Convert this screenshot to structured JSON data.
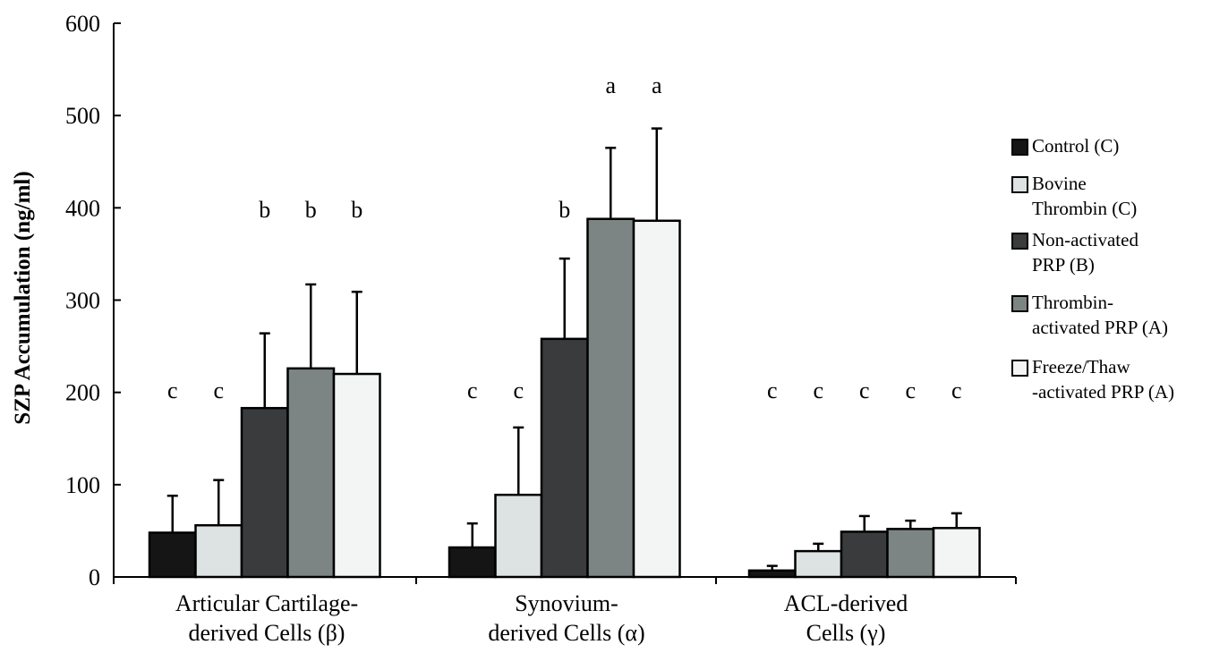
{
  "chart_data": {
    "type": "bar",
    "title": "",
    "xlabel": "",
    "ylabel": "SZP Accumulation (ng/ml)",
    "ylim": [
      0,
      600
    ],
    "yticks": [
      0,
      100,
      200,
      300,
      400,
      500,
      600
    ],
    "grid": false,
    "legend_position": "right",
    "categories": [
      [
        "Articular Cartilage-",
        "derived Cells (β)"
      ],
      [
        "Synovium-",
        "derived Cells (α)"
      ],
      [
        "ACL-derived",
        "Cells (γ)"
      ]
    ],
    "series": [
      {
        "name": [
          "Control (C)"
        ],
        "color": "#151515",
        "values": [
          48,
          32,
          7
        ],
        "errors": [
          40,
          26,
          5
        ],
        "sig": [
          "c",
          "c",
          "c"
        ]
      },
      {
        "name": [
          "Bovine",
          "Thrombin (C)"
        ],
        "color": "#dde2e2",
        "values": [
          56,
          89,
          28
        ],
        "errors": [
          49,
          73,
          8
        ],
        "sig": [
          "c",
          "c",
          "c"
        ]
      },
      {
        "name": [
          "Non-activated",
          "PRP (B)"
        ],
        "color": "#393b3d",
        "values": [
          183,
          258,
          49
        ],
        "errors": [
          81,
          87,
          17
        ],
        "sig": [
          "b",
          "b",
          "c"
        ]
      },
      {
        "name": [
          "Thrombin-",
          "activated PRP (A)"
        ],
        "color": "#7d8584",
        "values": [
          226,
          388,
          52
        ],
        "errors": [
          91,
          77,
          9
        ],
        "sig": [
          "b",
          "a",
          "c"
        ]
      },
      {
        "name": [
          "Freeze/Thaw",
          "-activated PRP (A)"
        ],
        "color": "#f3f5f5",
        "values": [
          220,
          386,
          53
        ],
        "errors": [
          89,
          100,
          16
        ],
        "sig": [
          "b",
          "a",
          "c"
        ]
      }
    ]
  }
}
